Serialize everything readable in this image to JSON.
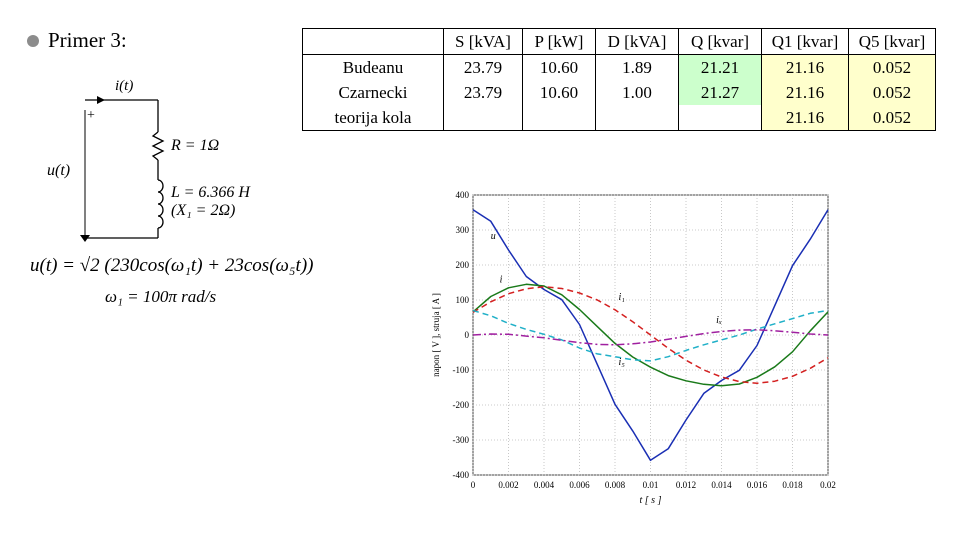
{
  "heading": {
    "text": "Primer 3:"
  },
  "circuit": {
    "current_label": "i(t)",
    "plus": "+",
    "voltage_label": "u(t)",
    "R_label": "R = 1Ω",
    "L_label": "L = 6.366 H",
    "X_label": "(X₁ = 2Ω)"
  },
  "formula": {
    "line1": "u(t) = √2 (230cos(ω₁t) + 23cos(ω₅t))",
    "line2": "ω₁ = 100π  rad/s"
  },
  "table": {
    "headers": [
      "S [kVA]",
      "P [kW]",
      "D [kVA]",
      "Q [kvar]",
      "Q1 [kvar]",
      "Q5 [kvar]"
    ],
    "rows": [
      {
        "label": "Budeanu",
        "cells": [
          "23.79",
          "10.60",
          "1.89",
          "21.21",
          "21.16",
          "0.052"
        ]
      },
      {
        "label": "Czarnecki",
        "cells": [
          "23.79",
          "10.60",
          "1.00",
          "21.27",
          "21.16",
          "0.052"
        ]
      },
      {
        "label": "teorija kola",
        "cells": [
          "",
          "",
          "",
          "",
          "21.16",
          "0.052"
        ]
      }
    ],
    "colors": {
      "q_highlight": "#ccffcc",
      "q1q5_highlight": "#ffffcc"
    }
  },
  "chart_data": {
    "type": "line",
    "title": "",
    "xlabel": "t [ s ]",
    "ylabel": "napon [ V ], struja [ A ]",
    "xlim": [
      0,
      0.02
    ],
    "ylim": [
      -400,
      400
    ],
    "xticks": [
      "0",
      "0.002",
      "0.004",
      "0.006",
      "0.008",
      "0.01",
      "0.012",
      "0.014",
      "0.016",
      "0.018",
      "0.02"
    ],
    "yticks": [
      "400",
      "300",
      "200",
      "100",
      "0",
      "-100",
      "-200",
      "-300",
      "-400"
    ],
    "grid": true,
    "series": [
      {
        "name": "u",
        "color": "#1a2fb4",
        "dash": "",
        "x": [
          0,
          0.001,
          0.002,
          0.003,
          0.004,
          0.005,
          0.006,
          0.007,
          0.008,
          0.009,
          0.01,
          0.011,
          0.012,
          0.013,
          0.014,
          0.015,
          0.016,
          0.017,
          0.018,
          0.019,
          0.02
        ],
        "values": [
          358,
          325,
          243,
          167,
          130,
          101,
          30,
          -84,
          -198,
          -274,
          -358,
          -325,
          -243,
          -167,
          -130,
          -101,
          -30,
          84,
          198,
          274,
          358
        ]
      },
      {
        "name": "i",
        "color": "#1a7a1a",
        "dash": "",
        "x": [
          0,
          0.001,
          0.002,
          0.003,
          0.004,
          0.005,
          0.006,
          0.007,
          0.008,
          0.009,
          0.01,
          0.011,
          0.012,
          0.013,
          0.014,
          0.015,
          0.016,
          0.017,
          0.018,
          0.019,
          0.02
        ],
        "values": [
          66,
          110,
          135,
          145,
          140,
          115,
          73,
          24,
          -24,
          -63,
          -92,
          -116,
          -131,
          -141,
          -145,
          -140,
          -121,
          -91,
          -48,
          12,
          66
        ]
      },
      {
        "name": "i₁",
        "color": "#d42020",
        "dash": "6,4",
        "x": [
          0,
          0.001,
          0.002,
          0.003,
          0.004,
          0.005,
          0.006,
          0.007,
          0.008,
          0.009,
          0.01,
          0.011,
          0.012,
          0.013,
          0.014,
          0.015,
          0.016,
          0.017,
          0.018,
          0.019,
          0.02
        ],
        "values": [
          65,
          95,
          118,
          132,
          138,
          133,
          120,
          100,
          72,
          38,
          0,
          -38,
          -72,
          -100,
          -120,
          -133,
          -138,
          -132,
          -118,
          -95,
          -65
        ]
      },
      {
        "name": "i₅",
        "color": "#20b0c8",
        "dash": "6,4",
        "x": [
          0,
          0.001,
          0.002,
          0.003,
          0.004,
          0.005,
          0.006,
          0.007,
          0.008,
          0.009,
          0.01,
          0.011,
          0.012,
          0.013,
          0.014,
          0.015,
          0.016,
          0.017,
          0.018,
          0.019,
          0.02
        ],
        "values": [
          70,
          55,
          33,
          16,
          2,
          -14,
          -37,
          -54,
          -62,
          -71,
          -74,
          -62,
          -44,
          -28,
          -14,
          0,
          17,
          32,
          47,
          62,
          70
        ]
      },
      {
        "name": "iₓ",
        "color": "#a020a0",
        "dash": "8,3,2,3",
        "x": [
          0,
          0.001,
          0.002,
          0.003,
          0.004,
          0.005,
          0.006,
          0.007,
          0.008,
          0.009,
          0.01,
          0.011,
          0.012,
          0.013,
          0.014,
          0.015,
          0.016,
          0.017,
          0.018,
          0.019,
          0.02
        ],
        "values": [
          0,
          3,
          2,
          -3,
          -8,
          -15,
          -22,
          -27,
          -28,
          -25,
          -20,
          -12,
          -4,
          4,
          10,
          14,
          15,
          12,
          8,
          3,
          0
        ]
      }
    ],
    "annotations": [
      {
        "text": "u",
        "x": 0.001,
        "y": 275
      },
      {
        "text": "i",
        "x": 0.0015,
        "y": 150
      },
      {
        "text": "i₁",
        "x": 0.0082,
        "y": 100
      },
      {
        "text": "iₓ",
        "x": 0.0137,
        "y": 35
      },
      {
        "text": "i₅",
        "x": 0.0082,
        "y": -85
      }
    ]
  }
}
